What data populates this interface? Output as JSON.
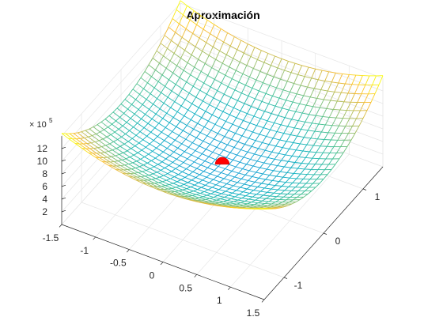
{
  "chart_data": {
    "type": "surface",
    "title": "Aproximación",
    "xlabel": "",
    "ylabel": "",
    "zlabel": "",
    "x_ticks": [
      -1.5,
      -1,
      -0.5,
      0,
      0.5,
      1,
      1.5
    ],
    "x_tick_labels": [
      "-1.5",
      "-1",
      "-0.5",
      "0",
      "0.5",
      "1",
      "1.5"
    ],
    "y_ticks": [
      -1,
      0,
      1
    ],
    "y_tick_labels": [
      "-1",
      "0",
      "1"
    ],
    "z_ticks": [
      2,
      4,
      6,
      8,
      10,
      12
    ],
    "z_tick_labels": [
      "2",
      "4",
      "6",
      "8",
      "10",
      "12"
    ],
    "z_exponent_base": "× 10",
    "z_exponent_power": "5",
    "xlim": [
      -1.5,
      1.5
    ],
    "ylim": [
      -1.5,
      1.5
    ],
    "zlim": [
      0,
      14
    ],
    "grid": true,
    "surface": {
      "style": "mesh",
      "colormap": "parula",
      "x_range": [
        -1.5,
        1.5
      ],
      "y_range": [
        -1.5,
        1.5
      ],
      "divisions": 30,
      "z_min": 0,
      "z_max": 13.8,
      "z_units_scale": 100000
    },
    "minimum_marker": {
      "x": 0,
      "y": 0,
      "z": 5.2,
      "color": "#ff0000"
    }
  }
}
